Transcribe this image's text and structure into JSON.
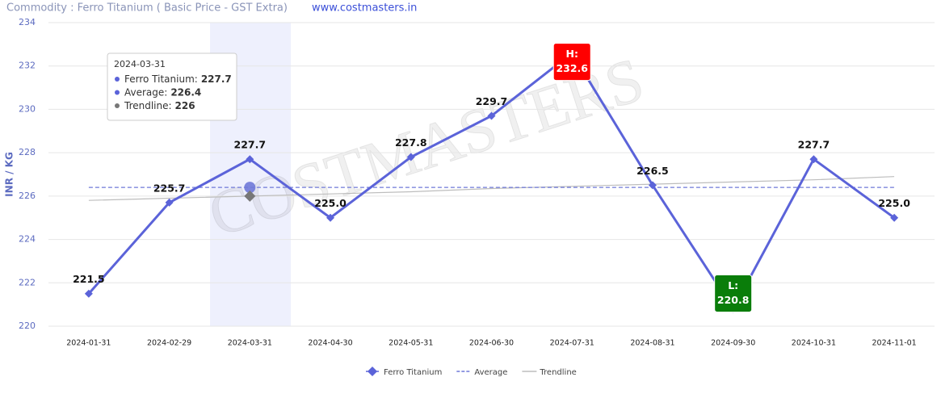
{
  "header": {
    "title": "Commodity : Ferro Titanium ( Basic Price - GST Extra)",
    "link": "www.costmasters.in"
  },
  "chart_data": {
    "type": "line",
    "watermark": "COSTMASTERS",
    "y_label": "INR / KG",
    "categories": [
      "2024-01-31",
      "2024-02-29",
      "2024-03-31",
      "2024-04-30",
      "2024-05-31",
      "2024-06-30",
      "2024-07-31",
      "2024-08-31",
      "2024-09-30",
      "2024-10-31",
      "2024-11-01"
    ],
    "series": [
      {
        "name": "Ferro Titanium",
        "color": "#5b63d9",
        "values": [
          221.5,
          225.7,
          227.7,
          225.0,
          227.8,
          229.7,
          232.6,
          226.5,
          220.8,
          227.7,
          225.0
        ],
        "value_labels": [
          "221.5",
          "225.7",
          "227.7",
          "225.0",
          "227.8",
          "229.7",
          null,
          "226.5",
          null,
          "227.7",
          "225.0"
        ]
      },
      {
        "name": "Average",
        "color": "#6f79d8",
        "values": [
          226.4,
          226.4,
          226.4,
          226.4,
          226.4,
          226.4,
          226.4,
          226.4,
          226.4,
          226.4,
          226.4
        ]
      },
      {
        "name": "Trendline",
        "color": "#bdbdbd",
        "values": [
          225.8,
          225.9,
          226.0,
          226.1,
          226.2,
          226.35,
          226.45,
          226.55,
          226.65,
          226.75,
          226.9
        ]
      }
    ],
    "ylim": [
      220,
      234
    ],
    "yticks": [
      220,
      222,
      224,
      226,
      228,
      230,
      232,
      234
    ],
    "grid": true,
    "annotations": [
      {
        "text": "H:",
        "value": "232.6",
        "color": "#ff0000",
        "category_index": 6
      },
      {
        "text": "L:",
        "value": "220.8",
        "color": "#0a7d0a",
        "category_index": 8
      }
    ],
    "tooltip": {
      "title": "2024-03-31",
      "rows": [
        {
          "label": "Ferro Titanium:",
          "value": 227.7,
          "color": "#5b63d9"
        },
        {
          "label": "Average:",
          "value": 226.4,
          "color": "#5b63d9"
        },
        {
          "label": "Trendline:",
          "value": 226,
          "color": "#777777"
        }
      ]
    }
  }
}
